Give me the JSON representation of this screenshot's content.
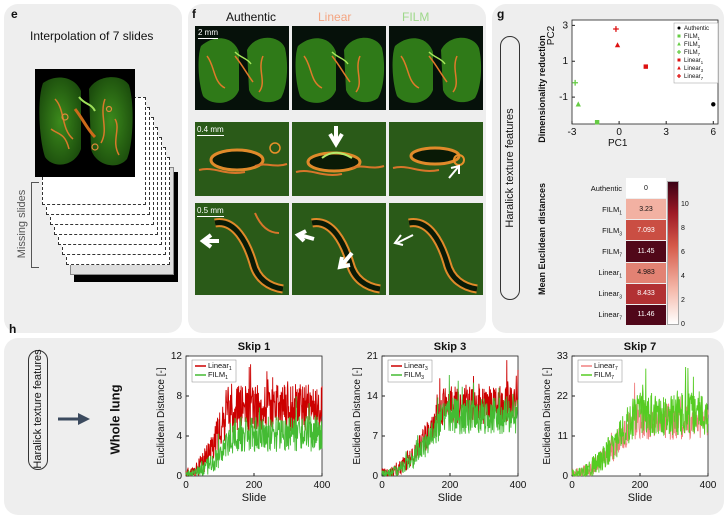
{
  "labels": {
    "e": "e",
    "f": "f",
    "g": "g",
    "h": "h"
  },
  "e": {
    "title": "Interpolation of 7 slides",
    "missing": "Missing slides"
  },
  "f": {
    "columns": [
      {
        "name": "Authentic",
        "color": "#111111"
      },
      {
        "name": "Linear",
        "color": "#f4a582"
      },
      {
        "name": "FILM",
        "color": "#9ed88a"
      }
    ],
    "scales": [
      "2 mm",
      "0.4 mm",
      "0.5 mm"
    ]
  },
  "g": {
    "vbox": "Haralick texture features",
    "scatter_side": "Dimensionality reduction",
    "heatmap_side": "Mean Euclidean distances",
    "pc1": "PC1",
    "pc2": "PC2",
    "xticks": [
      "-3",
      "0",
      "3",
      "6"
    ],
    "yticks": [
      "3",
      "1",
      "-1"
    ]
  },
  "h": {
    "vbox": "Haralick texture features",
    "whole_lung": "Whole lung",
    "xlabel": "Slide",
    "ylabel": "Euclidean Distance [-]"
  },
  "chart_data": [
    {
      "type": "scatter",
      "xlabel": "PC1",
      "ylabel": "PC2",
      "xlim": [
        -3,
        6.3
      ],
      "ylim": [
        -2.5,
        3.3
      ],
      "legend_position": "top-right",
      "series": [
        {
          "name": "Authentic",
          "marker": "circle",
          "color": "#000000",
          "x": [
            6.0
          ],
          "y": [
            -1.4
          ]
        },
        {
          "name": "FILM1",
          "marker": "square",
          "color": "#66cc44",
          "x": [
            -1.4
          ],
          "y": [
            -2.4
          ]
        },
        {
          "name": "FILM3",
          "marker": "triangle",
          "color": "#66cc44",
          "x": [
            -2.6
          ],
          "y": [
            -1.4
          ]
        },
        {
          "name": "FILM7",
          "marker": "plus",
          "color": "#66cc44",
          "x": [
            -2.8
          ],
          "y": [
            -0.2
          ]
        },
        {
          "name": "Linear1",
          "marker": "square",
          "color": "#dd1111",
          "x": [
            1.7
          ],
          "y": [
            0.7
          ]
        },
        {
          "name": "Linear3",
          "marker": "triangle",
          "color": "#dd1111",
          "x": [
            -0.1
          ],
          "y": [
            1.9
          ]
        },
        {
          "name": "Linear7",
          "marker": "plus",
          "color": "#dd1111",
          "x": [
            -0.2
          ],
          "y": [
            2.8
          ]
        }
      ]
    },
    {
      "type": "heatmap",
      "rows": [
        "Authentic",
        "FILM1",
        "FILM3",
        "FILM7",
        "Linear1",
        "Linear3",
        "Linear7"
      ],
      "values": [
        0,
        3.23,
        7.093,
        11.45,
        4.983,
        8.433,
        11.46
      ],
      "value_labels": [
        "0",
        "3.23",
        "7.093",
        "11.45",
        "4.983",
        "8.433",
        "11.46"
      ],
      "colorbar_ticks": [
        "0",
        "2",
        "4",
        "6",
        "8",
        "10"
      ],
      "range": [
        0,
        12
      ]
    },
    {
      "type": "line",
      "title": "Skip 1",
      "xlabel": "Slide",
      "ylabel": "Euclidean Distance [-]",
      "xlim": [
        0,
        400
      ],
      "ylim": [
        0,
        12
      ],
      "xticks": [
        "0",
        "200",
        "400"
      ],
      "yticks": [
        "0",
        "4",
        "8",
        "12"
      ],
      "series": [
        {
          "name": "Linear1",
          "color": "#cc0000",
          "seed": 11,
          "onset": 90,
          "plateau": 6.8,
          "noise": 2.4,
          "base": 0.3
        },
        {
          "name": "FILM1",
          "color": "#44bb33",
          "seed": 23,
          "onset": 110,
          "plateau": 4.2,
          "noise": 1.8,
          "base": 0.2
        }
      ]
    },
    {
      "type": "line",
      "title": "Skip 3",
      "xlabel": "Slide",
      "ylabel": "Euclidean Distance [-]",
      "xlim": [
        0,
        400
      ],
      "ylim": [
        0,
        21
      ],
      "xticks": [
        "0",
        "200",
        "400"
      ],
      "yticks": [
        "0",
        "7",
        "14",
        "21"
      ],
      "series": [
        {
          "name": "Linear3",
          "color": "#cc0000",
          "seed": 37,
          "onset": 150,
          "plateau": 12.5,
          "noise": 3.4,
          "base": 0.5
        },
        {
          "name": "FILM3",
          "color": "#44bb33",
          "seed": 41,
          "onset": 150,
          "plateau": 10.5,
          "noise": 3.2,
          "base": 0.4
        }
      ]
    },
    {
      "type": "line",
      "title": "Skip 7",
      "xlabel": "Slide",
      "ylabel": "Euclidean Distance [-]",
      "xlim": [
        0,
        400
      ],
      "ylim": [
        0,
        33
      ],
      "xticks": [
        "0",
        "200",
        "400"
      ],
      "yticks": [
        "0",
        "11",
        "22",
        "33"
      ],
      "series": [
        {
          "name": "Linear7",
          "color": "#f08080",
          "seed": 53,
          "onset": 150,
          "plateau": 15,
          "noise": 5,
          "base": 0.8
        },
        {
          "name": "FILM7",
          "color": "#55cc22",
          "seed": 67,
          "onset": 150,
          "plateau": 17,
          "noise": 6,
          "base": 0.6
        }
      ]
    }
  ]
}
